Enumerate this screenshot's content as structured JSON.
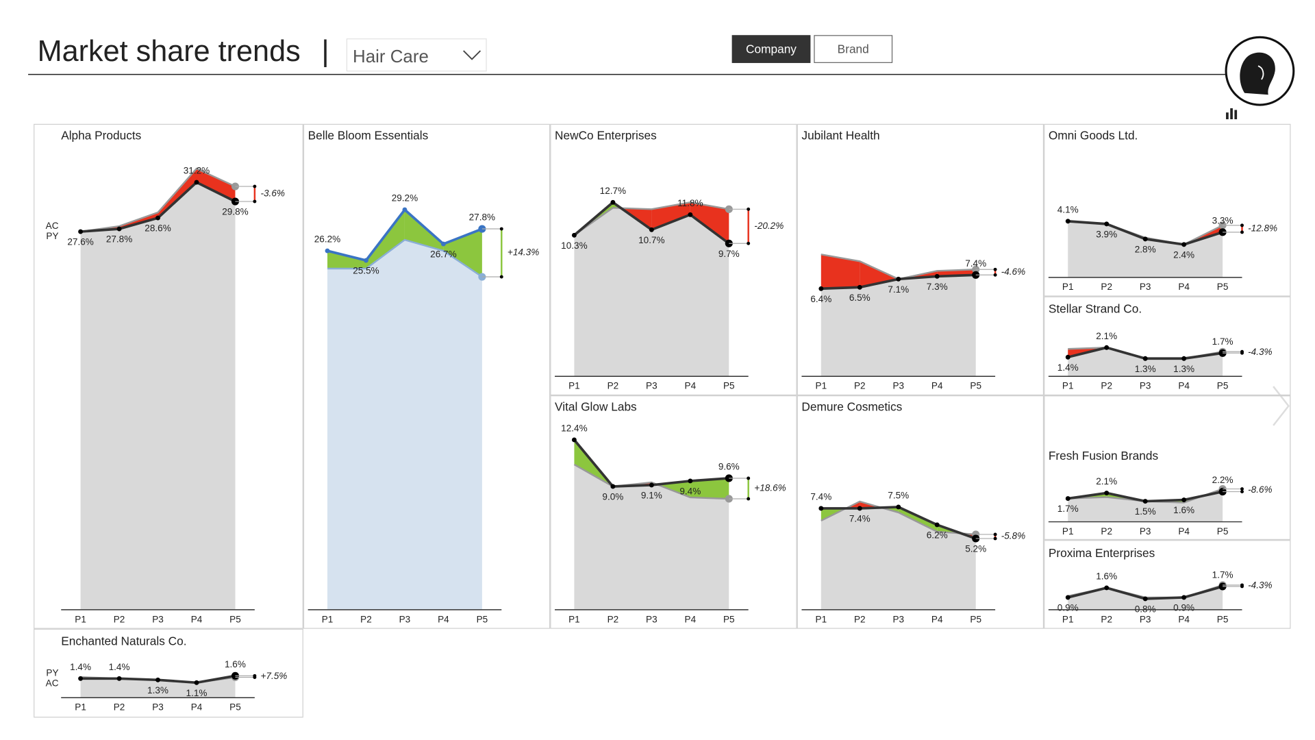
{
  "header": {
    "title": "Market share trends",
    "separator": "|",
    "dropdown": "Hair Care",
    "toggle": [
      "Company",
      "Brand"
    ],
    "active_toggle": 0
  },
  "chart_style": {
    "positive_color": "#8cc63e",
    "negative_color": "#e8321e"
  },
  "chart_data": [
    {
      "type": "line",
      "title": "Alpha Products",
      "categories": [
        "P1",
        "P2",
        "P3",
        "P4",
        "P5"
      ],
      "legend": true,
      "area_color": "#d9d9d9",
      "ylim": [
        0,
        34
      ],
      "series": [
        {
          "name": "AC",
          "color": "#333333",
          "values": [
            27.6,
            27.8,
            28.6,
            31.2,
            29.8
          ],
          "value_labels": [
            "27.6%",
            "27.8%",
            "28.6%",
            "31.2%",
            "29.8%"
          ]
        },
        {
          "name": "PY",
          "color": "#999999",
          "values": [
            27.6,
            28.0,
            29.0,
            32.2,
            30.9
          ]
        }
      ],
      "variance": -3.6,
      "variance_label": "-3.6%"
    },
    {
      "type": "line",
      "title": "Belle Bloom Essentials",
      "categories": [
        "P1",
        "P2",
        "P3",
        "P4",
        "P5"
      ],
      "legend": false,
      "area_color": "#d6e2ef",
      "ylim": [
        0,
        34
      ],
      "series": [
        {
          "name": "AC",
          "color": "#3a74c4",
          "values": [
            26.2,
            25.5,
            29.2,
            26.7,
            27.8
          ],
          "value_labels": [
            "26.2%",
            "25.5%",
            "29.2%",
            "26.7%",
            "27.8%"
          ]
        },
        {
          "name": "PY",
          "color": "#8aaed6",
          "values": [
            24.9,
            24.9,
            27.0,
            26.2,
            24.3
          ]
        }
      ],
      "variance": 14.3,
      "variance_label": "+14.3%"
    },
    {
      "type": "line",
      "title": "NewCo Enterprises",
      "categories": [
        "P1",
        "P2",
        "P3",
        "P4",
        "P5"
      ],
      "legend": false,
      "area_color": "#d9d9d9",
      "ylim": [
        0,
        14
      ],
      "series": [
        {
          "name": "AC",
          "color": "#333333",
          "values": [
            10.3,
            12.7,
            10.7,
            11.8,
            9.7
          ],
          "value_labels": [
            "10.3%",
            "12.7%",
            "10.7%",
            "11.8%",
            "9.7%"
          ]
        },
        {
          "name": "PY",
          "color": "#999999",
          "values": [
            10.3,
            12.3,
            12.2,
            12.7,
            12.2
          ]
        }
      ],
      "variance": -20.2,
      "variance_label": "-20.2%"
    },
    {
      "type": "line",
      "title": "Jubilant Health",
      "categories": [
        "P1",
        "P2",
        "P3",
        "P4",
        "P5"
      ],
      "legend": false,
      "area_color": "#d9d9d9",
      "ylim": [
        0,
        10
      ],
      "series": [
        {
          "name": "AC",
          "color": "#333333",
          "values": [
            6.4,
            6.5,
            7.1,
            7.3,
            7.4
          ],
          "value_labels": [
            "6.4%",
            "6.5%",
            "7.1%",
            "7.3%",
            "7.4%"
          ]
        },
        {
          "name": "PY",
          "color": "#999999",
          "values": [
            8.9,
            8.4,
            7.1,
            7.7,
            7.8
          ]
        }
      ],
      "variance": -4.6,
      "variance_label": "-4.6%"
    },
    {
      "type": "line",
      "title": "Omni Goods Ltd.",
      "categories": [
        "P1",
        "P2",
        "P3",
        "P4",
        "P5"
      ],
      "legend": false,
      "area_color": "#d9d9d9",
      "ylim": [
        0,
        5
      ],
      "series": [
        {
          "name": "AC",
          "color": "#333333",
          "values": [
            4.1,
            3.9,
            2.8,
            2.4,
            3.3
          ],
          "value_labels": [
            "4.1%",
            "3.9%",
            "2.8%",
            "2.4%",
            "3.3%"
          ]
        },
        {
          "name": "PY",
          "color": "#999999",
          "values": [
            4.1,
            3.9,
            2.9,
            2.4,
            3.8
          ]
        }
      ],
      "variance": -12.8,
      "variance_label": "-12.8%"
    },
    {
      "type": "line",
      "title": "Stellar Strand Co.",
      "categories": [
        "P1",
        "P2",
        "P3",
        "P4",
        "P5"
      ],
      "legend": false,
      "area_color": "#d9d9d9",
      "ylim": [
        0,
        2.5
      ],
      "series": [
        {
          "name": "AC",
          "color": "#333333",
          "values": [
            1.4,
            2.1,
            1.3,
            1.3,
            1.7
          ],
          "value_labels": [
            "1.4%",
            "2.1%",
            "1.3%",
            "1.3%",
            "1.7%"
          ]
        },
        {
          "name": "PY",
          "color": "#999999",
          "values": [
            2.0,
            2.1,
            1.3,
            1.3,
            1.8
          ]
        }
      ],
      "variance": -4.3,
      "variance_label": "-4.3%"
    },
    {
      "type": "line",
      "title": "Vital Glow Labs",
      "categories": [
        "P1",
        "P2",
        "P3",
        "P4",
        "P5"
      ],
      "legend": false,
      "area_color": "#d9d9d9",
      "ylim": [
        0,
        14
      ],
      "series": [
        {
          "name": "AC",
          "color": "#333333",
          "values": [
            12.4,
            9.0,
            9.1,
            9.4,
            9.6
          ],
          "value_labels": [
            "12.4%",
            "9.0%",
            "9.1%",
            "9.4%",
            "9.6%"
          ]
        },
        {
          "name": "PY",
          "color": "#999999",
          "values": [
            10.6,
            9.0,
            9.3,
            8.2,
            8.1
          ]
        }
      ],
      "variance": 18.6,
      "variance_label": "+18.6%"
    },
    {
      "type": "line",
      "title": "Demure Cosmetics",
      "categories": [
        "P1",
        "P2",
        "P3",
        "P4",
        "P5"
      ],
      "legend": false,
      "area_color": "#d9d9d9",
      "ylim": [
        0,
        9
      ],
      "series": [
        {
          "name": "AC",
          "color": "#333333",
          "values": [
            7.4,
            7.4,
            7.5,
            6.2,
            5.2
          ],
          "value_labels": [
            "7.4%",
            "7.4%",
            "7.5%",
            "6.2%",
            "5.2%"
          ]
        },
        {
          "name": "PY",
          "color": "#999999",
          "values": [
            6.5,
            7.9,
            7.1,
            5.7,
            5.5
          ]
        }
      ],
      "variance": -5.8,
      "variance_label": "-5.8%"
    },
    {
      "type": "line",
      "title": "Fresh Fusion Brands",
      "categories": [
        "P1",
        "P2",
        "P3",
        "P4",
        "P5"
      ],
      "legend": false,
      "area_color": "#d9d9d9",
      "ylim": [
        0,
        3
      ],
      "series": [
        {
          "name": "AC",
          "color": "#333333",
          "values": [
            1.7,
            2.1,
            1.5,
            1.6,
            2.2
          ],
          "value_labels": [
            "1.7%",
            "2.1%",
            "1.5%",
            "1.6%",
            "2.2%"
          ]
        },
        {
          "name": "PY",
          "color": "#999999",
          "values": [
            1.7,
            1.8,
            1.5,
            1.4,
            2.4
          ]
        }
      ],
      "variance": -8.6,
      "variance_label": "-8.6%"
    },
    {
      "type": "line",
      "title": "Proxima Enterprises",
      "categories": [
        "P1",
        "P2",
        "P3",
        "P4",
        "P5"
      ],
      "legend": false,
      "area_color": "#d9d9d9",
      "ylim": [
        0,
        2
      ],
      "series": [
        {
          "name": "AC",
          "color": "#333333",
          "values": [
            0.9,
            1.6,
            0.8,
            0.9,
            1.7
          ],
          "value_labels": [
            "0.9%",
            "1.6%",
            "0.8%",
            "0.9%",
            "1.7%"
          ]
        },
        {
          "name": "PY",
          "color": "#999999",
          "values": [
            1.0,
            1.6,
            0.9,
            0.9,
            1.8
          ]
        }
      ],
      "variance": -4.3,
      "variance_label": "-4.3%"
    },
    {
      "type": "line",
      "title": "Enchanted Naturals Co.",
      "categories": [
        "P1",
        "P2",
        "P3",
        "P4",
        "P5"
      ],
      "legend": true,
      "area_color": "#d9d9d9",
      "ylim": [
        0,
        2
      ],
      "series": [
        {
          "name": "AC",
          "color": "#333333",
          "values": [
            1.4,
            1.4,
            1.3,
            1.1,
            1.6
          ],
          "value_labels": [
            "1.4%",
            "1.4%",
            "1.3%",
            "1.1%",
            "1.6%"
          ]
        },
        {
          "name": "PY",
          "color": "#999999",
          "values": [
            1.5,
            1.4,
            1.3,
            1.1,
            1.49
          ]
        }
      ],
      "variance": 7.5,
      "variance_label": "+7.5%"
    }
  ]
}
